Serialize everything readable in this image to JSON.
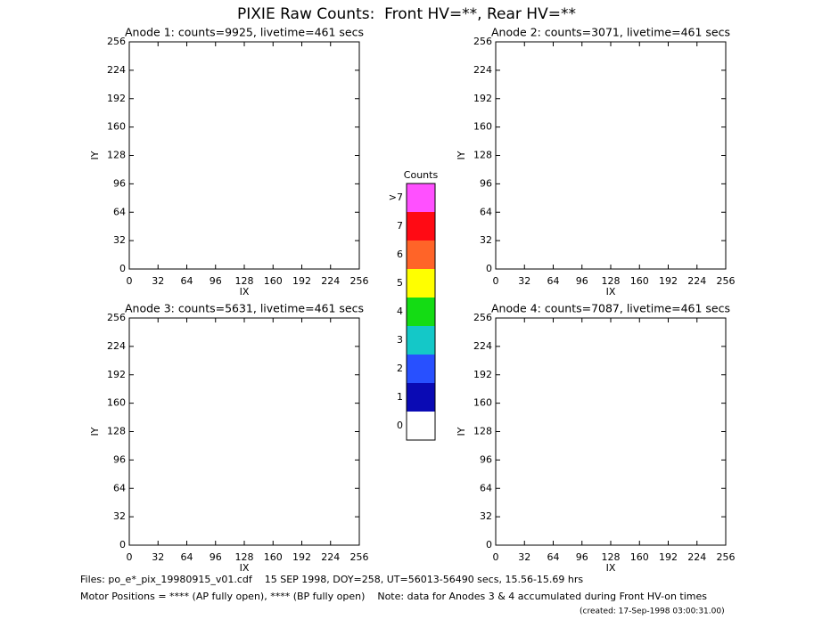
{
  "title": "PIXIE Raw Counts:  Front HV=**, Rear HV=**",
  "chart_data": [
    {
      "type": "heatmap",
      "title": "Anode 1: counts=9925, livetime=461 secs",
      "x_label": "IX",
      "y_label": "IY",
      "xlim": [
        0,
        256
      ],
      "ylim": [
        0,
        256
      ],
      "xticks": [
        0,
        32,
        64,
        96,
        128,
        160,
        192,
        224,
        256
      ],
      "yticks": [
        0,
        32,
        64,
        96,
        128,
        160,
        192,
        224,
        256
      ]
    },
    {
      "type": "heatmap",
      "title": "Anode 2: counts=3071, livetime=461 secs",
      "x_label": "IX",
      "y_label": "IY",
      "xlim": [
        0,
        256
      ],
      "ylim": [
        0,
        256
      ],
      "xticks": [
        0,
        32,
        64,
        96,
        128,
        160,
        192,
        224,
        256
      ],
      "yticks": [
        0,
        32,
        64,
        96,
        128,
        160,
        192,
        224,
        256
      ]
    },
    {
      "type": "heatmap",
      "title": "Anode 3: counts=5631, livetime=461 secs",
      "x_label": "IX",
      "y_label": "IY",
      "xlim": [
        0,
        256
      ],
      "ylim": [
        0,
        256
      ],
      "xticks": [
        0,
        32,
        64,
        96,
        128,
        160,
        192,
        224,
        256
      ],
      "yticks": [
        0,
        32,
        64,
        96,
        128,
        160,
        192,
        224,
        256
      ]
    },
    {
      "type": "heatmap",
      "title": "Anode 4: counts=7087, livetime=461 secs",
      "x_label": "IX",
      "y_label": "IY",
      "xlim": [
        0,
        256
      ],
      "ylim": [
        0,
        256
      ],
      "xticks": [
        0,
        32,
        64,
        96,
        128,
        160,
        192,
        224,
        256
      ],
      "yticks": [
        0,
        32,
        64,
        96,
        128,
        160,
        192,
        224,
        256
      ]
    }
  ],
  "colorbar": {
    "title": "Counts",
    "labels": [
      "0",
      "1",
      "2",
      "3",
      "4",
      "5",
      "6",
      "7",
      ">7"
    ],
    "colors": [
      "#ffffff",
      "#0a0ab4",
      "#2850ff",
      "#14c8c8",
      "#14dc14",
      "#ffff00",
      "#ff6428",
      "#ff0a14",
      "#ff50ff"
    ]
  },
  "footer": [
    "Files: po_e*_pix_19980915_v01.cdf    15 SEP 1998, DOY=258, UT=56013-56490 secs, 15.56-15.69 hrs",
    "Motor Positions = **** (AP fully open), **** (BP fully open)    Note: data for Anodes 3 & 4 accumulated during Front HV-on times",
    "(created: 17-Sep-1998 03:00:31.00)"
  ]
}
